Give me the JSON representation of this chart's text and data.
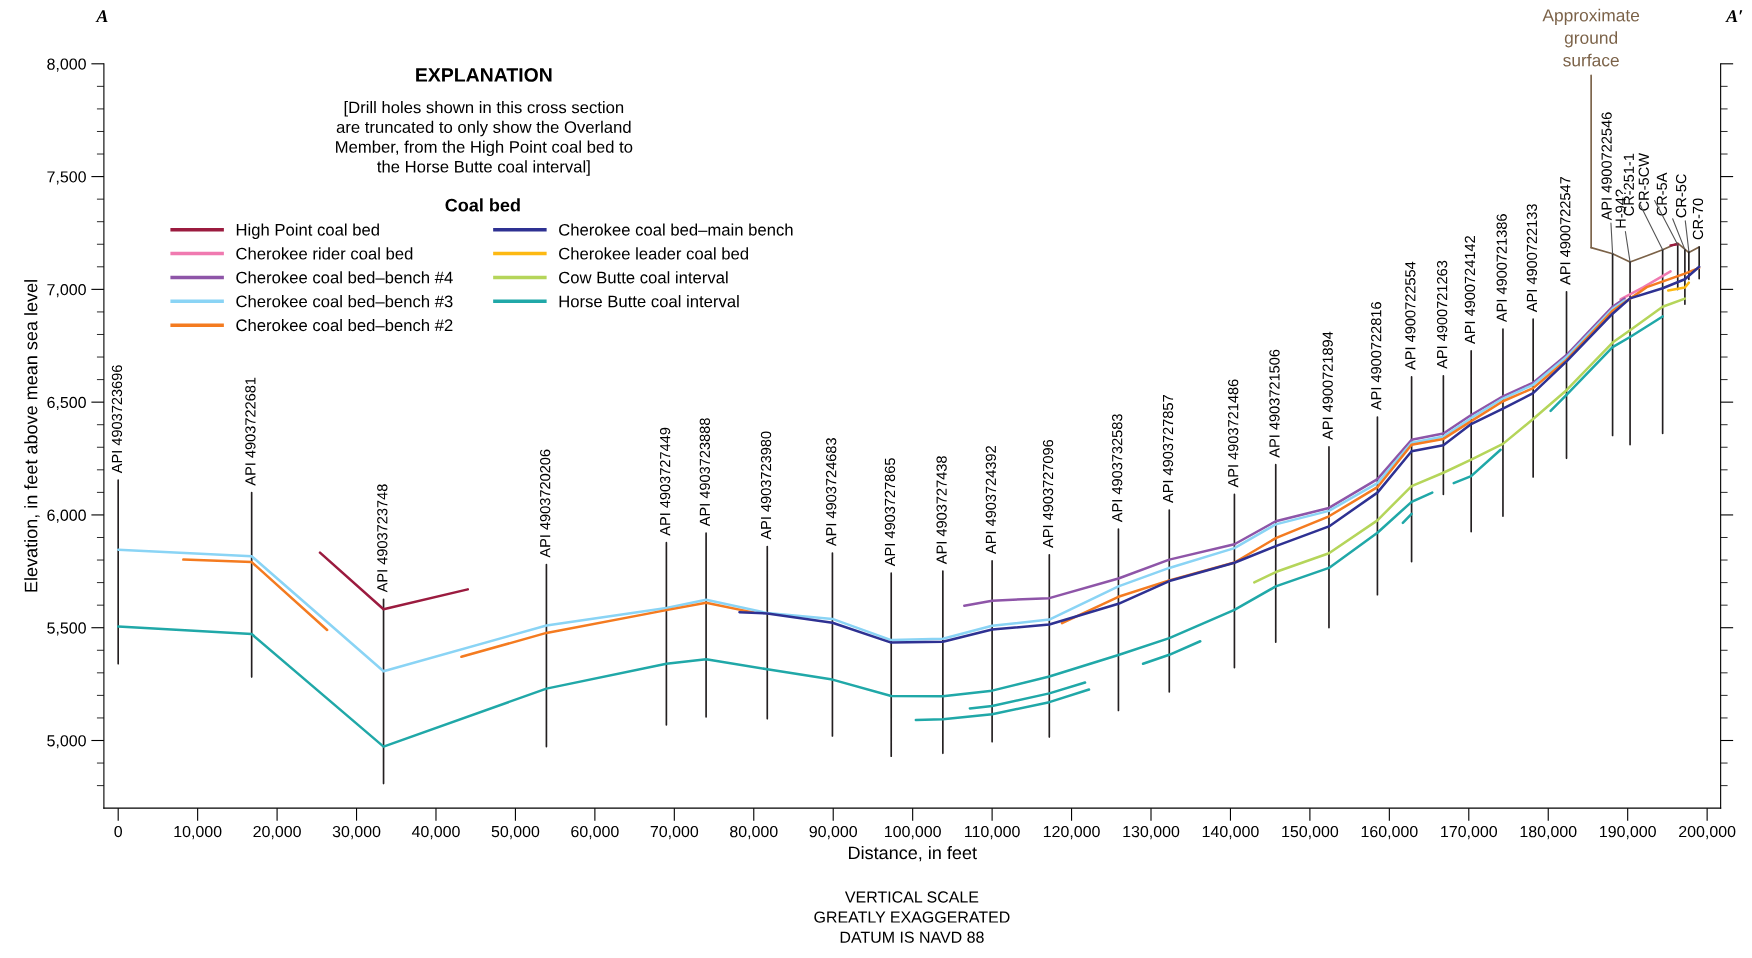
{
  "chart_data": {
    "type": "line",
    "title": "EXPLANATION",
    "subtitle": "[Drill holes shown in this cross section\nare truncated to only show the Overland\nMember, from the High Point coal bed to\nthe Horse Butte coal interval]",
    "legend_title": "Coal bed",
    "legend": "top left",
    "xlabel": "Distance, in feet",
    "ylabel": "Elevation, in feet above mean sea level",
    "xlim": [
      -1800,
      201700
    ],
    "ylim": [
      4700,
      8000
    ],
    "xticks": [
      {
        "value": 0,
        "label": "0"
      },
      {
        "value": 10000,
        "label": "10,000"
      },
      {
        "value": 20000,
        "label": "20,000"
      },
      {
        "value": 30000,
        "label": "30,000"
      },
      {
        "value": 40000,
        "label": "40,000"
      },
      {
        "value": 50000,
        "label": "50,000"
      },
      {
        "value": 60000,
        "label": "60,000"
      },
      {
        "value": 70000,
        "label": "70,000"
      },
      {
        "value": 80000,
        "label": "80,000"
      },
      {
        "value": 90000,
        "label": "90,000"
      },
      {
        "value": 100000,
        "label": "100,000"
      },
      {
        "value": 110000,
        "label": "110,000"
      },
      {
        "value": 120000,
        "label": "120,000"
      },
      {
        "value": 130000,
        "label": "130,000"
      },
      {
        "value": 140000,
        "label": "140,000"
      },
      {
        "value": 150000,
        "label": "150,000"
      },
      {
        "value": 160000,
        "label": "160,000"
      },
      {
        "value": 170000,
        "label": "170,000"
      },
      {
        "value": 180000,
        "label": "180,000"
      },
      {
        "value": 190000,
        "label": "190,000"
      },
      {
        "value": 200000,
        "label": "200,000"
      }
    ],
    "yticks": [
      {
        "value": 4800,
        "label": null
      },
      {
        "value": 4900,
        "label": null
      },
      {
        "value": 5000,
        "label": "5,000"
      },
      {
        "value": 5100,
        "label": null
      },
      {
        "value": 5200,
        "label": null
      },
      {
        "value": 5300,
        "label": null
      },
      {
        "value": 5400,
        "label": null
      },
      {
        "value": 5500,
        "label": "5,500"
      },
      {
        "value": 5600,
        "label": null
      },
      {
        "value": 5700,
        "label": null
      },
      {
        "value": 5800,
        "label": null
      },
      {
        "value": 5900,
        "label": null
      },
      {
        "value": 6000,
        "label": "6,000"
      },
      {
        "value": 6100,
        "label": null
      },
      {
        "value": 6200,
        "label": null
      },
      {
        "value": 6300,
        "label": null
      },
      {
        "value": 6400,
        "label": null
      },
      {
        "value": 6500,
        "label": "6,500"
      },
      {
        "value": 6600,
        "label": null
      },
      {
        "value": 6700,
        "label": null
      },
      {
        "value": 6800,
        "label": null
      },
      {
        "value": 6900,
        "label": null
      },
      {
        "value": 7000,
        "label": "7,000"
      },
      {
        "value": 7100,
        "label": null
      },
      {
        "value": 7200,
        "label": null
      },
      {
        "value": 7300,
        "label": null
      },
      {
        "value": 7400,
        "label": null
      },
      {
        "value": 7500,
        "label": "7,500"
      },
      {
        "value": 7600,
        "label": null
      },
      {
        "value": 7700,
        "label": null
      },
      {
        "value": 7800,
        "label": null
      },
      {
        "value": 7900,
        "label": null
      },
      {
        "value": 8000,
        "label": "8,000"
      }
    ],
    "series": [
      {
        "name": "High Point coal bed",
        "color": "#9b1b3f",
        "x": [
          25400,
          33400,
          44000,
          null,
          195400,
          196300
        ],
        "values": [
          5833,
          5582,
          5670,
          null,
          7195,
          7200
        ]
      },
      {
        "name": "Cherokee rider coal bed",
        "color": "#f07ab0",
        "x": [
          189100,
          192000,
          195400
        ],
        "values": [
          6956,
          7010,
          7080
        ]
      },
      {
        "name": "Cherokee coal bed–bench #4",
        "color": "#8e55a8",
        "x": [
          106500,
          110000,
          117200,
          125900,
          132300,
          140500,
          145700,
          152400,
          158500,
          162800,
          166800,
          170300,
          174300,
          178100,
          182300,
          188100,
          189600
        ],
        "values": [
          5597,
          5620,
          5631,
          5718,
          5802,
          5870,
          5972,
          6031,
          6159,
          6333,
          6361,
          6443,
          6526,
          6586,
          6709,
          6923,
          6959
        ]
      },
      {
        "name": "Cherokee coal bed–bench #3",
        "color": "#8ad4f5",
        "x": [
          0,
          16800,
          33400,
          53900,
          69000,
          74000,
          81700,
          89900,
          97300,
          103800,
          110000,
          117200,
          125900,
          132300,
          140500,
          145700,
          152400,
          158500,
          162800,
          166800,
          170300,
          174300,
          178100,
          182300,
          188100,
          189600
        ],
        "values": [
          5846,
          5817,
          5307,
          5510,
          5587,
          5624,
          5565,
          5539,
          5445,
          5451,
          5509,
          5536,
          5683,
          5765,
          5853,
          5958,
          6018,
          6141,
          6320,
          6348,
          6430,
          6516,
          6577,
          6700,
          6914,
          6950
        ]
      },
      {
        "name": "Cherokee coal bed–bench #2",
        "color": "#f47b20",
        "x": [
          8200,
          16800,
          26300,
          null,
          43200,
          53900,
          69000,
          74000,
          80000,
          null,
          118800,
          125900,
          132300,
          140500,
          145700,
          152400,
          158500,
          162800,
          166800,
          170300,
          174300,
          178100,
          182300,
          188100,
          192400,
          197200,
          199000
        ],
        "values": [
          5802,
          5791,
          5490,
          null,
          5371,
          5477,
          5578,
          5611,
          5567,
          null,
          5520,
          5637,
          5710,
          5789,
          5897,
          5994,
          6123,
          6311,
          6337,
          6416,
          6504,
          6562,
          6687,
          6905,
          7010,
          7070,
          7095
        ]
      },
      {
        "name": "Cherokee coal bed–main bench",
        "color": "#2e3192",
        "x": [
          78200,
          81700,
          89900,
          97300,
          103800,
          110000,
          117200,
          125900,
          132300,
          140500,
          145700,
          152400,
          158500,
          162800,
          166800,
          170300,
          174300,
          178100,
          182300,
          188100,
          190300,
          194400,
          197200,
          199000
        ],
        "values": [
          5569,
          5563,
          5522,
          5434,
          5438,
          5492,
          5514,
          5606,
          5707,
          5788,
          5862,
          5949,
          6099,
          6282,
          6309,
          6403,
          6471,
          6540,
          6681,
          6892,
          6960,
          7005,
          7045,
          7100
        ]
      },
      {
        "name": "Cherokee leader coal bed",
        "color": "#fdb913",
        "x": [
          195100,
          197200,
          197700
        ],
        "values": [
          6995,
          7008,
          7030
        ]
      },
      {
        "name": "Cow Butte coal interval",
        "color": "#b5d55a",
        "x": [
          143000,
          145700,
          152400,
          158500,
          162800,
          166800,
          170300,
          174300,
          178100,
          182300,
          188100,
          190300,
          194400,
          197200
        ],
        "values": [
          5701,
          5747,
          5830,
          5976,
          6128,
          6187,
          6245,
          6315,
          6425,
          6553,
          6764,
          6819,
          6923,
          6959
        ]
      },
      {
        "name": "Horse Butte coal interval",
        "color": "#20a8a8",
        "x": [
          0,
          16800,
          33400,
          53900,
          69000,
          74000,
          81700,
          89900,
          97300,
          103800,
          110000,
          117200,
          125900,
          132300,
          140500,
          145700,
          152400,
          158500,
          162800,
          165400,
          null,
          168100,
          170300,
          174000,
          null,
          180300,
          182300,
          188100,
          190300,
          194400,
          null,
          100400,
          103800,
          110000,
          117200,
          122200,
          null,
          107200,
          110000,
          117200,
          121700,
          null,
          129000,
          132300,
          136200,
          null,
          161700,
          162800
        ],
        "values": [
          5505,
          5472,
          4973,
          5230,
          5340,
          5360,
          5316,
          5270,
          5197,
          5196,
          5221,
          5284,
          5379,
          5454,
          5579,
          5683,
          5765,
          5921,
          6058,
          6099,
          null,
          6141,
          6172,
          6289,
          null,
          6461,
          6532,
          6744,
          6789,
          6880,
          null,
          5091,
          5094,
          5116,
          5170,
          5226,
          null,
          5142,
          5153,
          5209,
          5257,
          null,
          5340,
          5380,
          5440,
          null,
          5965,
          6005
        ]
      },
      {
        "name": "Approximate\nground\nsurface",
        "type": "line",
        "color": "#7b6248",
        "x": [
          185400,
          188100,
          190300,
          192500,
          194400,
          196300,
          197700,
          199000
        ],
        "values": [
          7185,
          7158,
          7121,
          7150,
          7176,
          7205,
          7163,
          7188
        ]
      },
      {
        "type": "line",
        "color": "#231f20",
        "x": [
          0,
          0,
          null,
          16800,
          16800,
          null,
          33400,
          33400,
          null,
          53900,
          53900,
          null,
          69000,
          69000,
          null,
          74000,
          74000,
          null,
          81700,
          81700,
          null,
          89900,
          89900,
          null,
          97300,
          97300,
          null,
          103800,
          103800,
          null,
          110000,
          110000,
          null,
          117200,
          117200,
          null,
          125900,
          125900,
          null,
          132300,
          132300,
          null,
          140500,
          140500,
          null,
          145700,
          145700,
          null,
          152400,
          152400,
          null,
          158500,
          158500,
          null,
          162800,
          162800,
          null,
          166800,
          166800,
          null,
          170300,
          170300,
          null,
          174300,
          174300,
          null,
          178100,
          178100,
          null,
          182300,
          182300,
          null,
          188100,
          188100,
          null,
          190300,
          190300,
          null,
          194400,
          194400,
          null,
          196300,
          196300,
          null,
          197200,
          197200,
          null,
          197700,
          197700,
          null,
          199000,
          199000
        ],
        "values": [
          5340,
          6154,
          null,
          5281,
          6099,
          null,
          4809,
          5626,
          null,
          4973,
          5780,
          null,
          5069,
          5877,
          null,
          5104,
          5919,
          null,
          5096,
          5860,
          null,
          5020,
          5831,
          null,
          4930,
          5742,
          null,
          4943,
          5751,
          null,
          4994,
          5796,
          null,
          5015,
          5823,
          null,
          5133,
          5937,
          null,
          5215,
          6022,
          null,
          5323,
          6091,
          null,
          5436,
          6223,
          null,
          5500,
          6302,
          null,
          5646,
          6434,
          null,
          5793,
          6612,
          null,
          6091,
          6617,
          null,
          5926,
          6727,
          null,
          5994,
          6824,
          null,
          6168,
          6868,
          null,
          6251,
          6989,
          null,
          6352,
          7158,
          null,
          6311,
          7121,
          null,
          6361,
          7176,
          null,
          6999,
          7198,
          null,
          6934,
          7176,
          null,
          7044,
          7168,
          null,
          7047,
          7188
        ]
      }
    ],
    "annotations": [
      "A",
      "A′",
      "VERTICAL SCALE\nGREATLY EXAGGERATED\nDATUM IS NAVD 88",
      {
        "text": "API 4903723696",
        "x": 0,
        "y": 6154
      },
      {
        "text": "API 4903722681",
        "x": 16800,
        "y": 6099
      },
      {
        "text": "API 4903723748",
        "x": 33400,
        "y": 5626
      },
      {
        "text": "API 4903720206",
        "x": 53900,
        "y": 5780
      },
      {
        "text": "API 4903727449",
        "x": 69000,
        "y": 5877
      },
      {
        "text": "API 4903723888",
        "x": 74000,
        "y": 5919
      },
      {
        "text": "API 4903723980",
        "x": 81700,
        "y": 5860
      },
      {
        "text": "API 4903724683",
        "x": 89900,
        "y": 5831
      },
      {
        "text": "API 4903727865",
        "x": 97300,
        "y": 5742
      },
      {
        "text": "API 4903727438",
        "x": 103800,
        "y": 5751
      },
      {
        "text": "API 4903724392",
        "x": 110000,
        "y": 5796
      },
      {
        "text": "API 4903727096",
        "x": 117200,
        "y": 5823
      },
      {
        "text": "API 4903732583",
        "x": 125900,
        "y": 5937
      },
      {
        "text": "API 4903727857",
        "x": 132300,
        "y": 6022
      },
      {
        "text": "API 4903721486",
        "x": 140500,
        "y": 6091
      },
      {
        "text": "API 4903721506",
        "x": 145700,
        "y": 6223
      },
      {
        "text": "API 4900721894",
        "x": 152400,
        "y": 6302
      },
      {
        "text": "API 4900722816",
        "x": 158500,
        "y": 6434
      },
      {
        "text": "API 4900722554",
        "x": 162800,
        "y": 6612
      },
      {
        "text": "API 4900721263",
        "x": 166800,
        "y": 6617
      },
      {
        "text": "API 4900724142",
        "x": 170300,
        "y": 6727
      },
      {
        "text": "API 4900721386",
        "x": 174300,
        "y": 6824
      },
      {
        "text": "API 4900722133",
        "x": 178100,
        "y": 6868
      },
      {
        "text": "API 4900722547",
        "x": 182300,
        "y": 6989
      },
      {
        "text": "API 4900722546",
        "x": 188100,
        "y": 7158
      },
      {
        "text": "H-94?",
        "x": 190300,
        "y": 7121
      },
      {
        "text": "CR-251-1",
        "x": 194400,
        "y": 7176
      },
      {
        "text": "CR-5CW",
        "x": 196300,
        "y": 7198
      },
      {
        "text": "CR-5A",
        "x": 197200,
        "y": 7176
      },
      {
        "text": "CR-5C",
        "x": 197700,
        "y": 7168
      },
      {
        "text": "CR-70",
        "x": 199000,
        "y": 7188
      }
    ]
  }
}
